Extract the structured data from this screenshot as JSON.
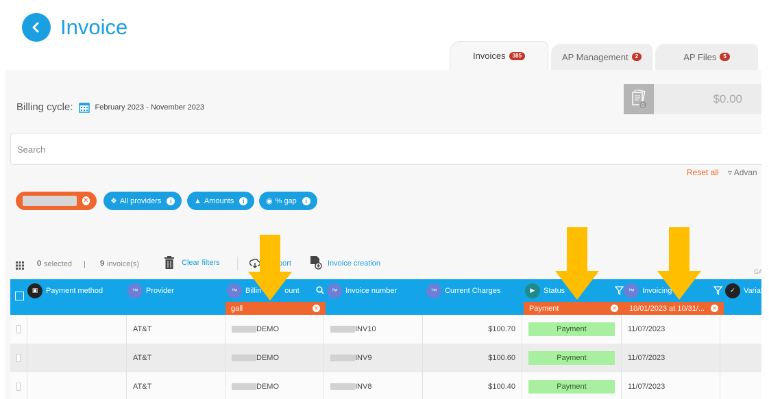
{
  "header": {
    "title": "Invoice"
  },
  "tabs": [
    {
      "label": "Invoices",
      "badge": "385",
      "active": true
    },
    {
      "label": "AP Management",
      "badge": "2",
      "active": false
    },
    {
      "label": "AP Files",
      "badge": "5",
      "active": false
    }
  ],
  "billing": {
    "label": "Billing cycle:",
    "range": "February 2023 - November 2023"
  },
  "amount": {
    "value": "$0.00",
    "icon_badge": "0"
  },
  "search": {
    "placeholder": "Search"
  },
  "filters_bar": {
    "reset": "Reset all",
    "advanced": "Advan"
  },
  "chips": [
    {
      "label": "All providers"
    },
    {
      "label": "Amounts"
    },
    {
      "label": "% gap"
    }
  ],
  "toolbar": {
    "selected_count": "0",
    "selected_label": "selected",
    "divider": "|",
    "invoice_count": "9",
    "invoice_label": "invoice(s)",
    "clear_filters": "Clear filters",
    "export": "port",
    "invoice_creation": "Invoice creation",
    "right_text": "GA"
  },
  "columns": [
    {
      "label": "Payment method"
    },
    {
      "label": "Provider"
    },
    {
      "label": "Billin",
      "label_tail": "ount",
      "filter": "gall"
    },
    {
      "label": "Invoice number"
    },
    {
      "label": "Current Charges"
    },
    {
      "label": "Status",
      "filter": "Payment"
    },
    {
      "label": "Invoicing",
      "filter": "10/01/2023 at 10/31/..."
    },
    {
      "label": "Variatio"
    }
  ],
  "rows": [
    {
      "provider": "AT&T",
      "account": "DEMO",
      "invoice": "INV10",
      "charges": "$100.70",
      "status": "Payment",
      "date": "11/07/2023"
    },
    {
      "provider": "AT&T",
      "account": "DEMO",
      "invoice": "INV9",
      "charges": "$100.60",
      "status": "Payment",
      "date": "11/07/2023"
    },
    {
      "provider": "AT&T",
      "account": "DEMO",
      "invoice": "INV8",
      "charges": "$100.40",
      "status": "Payment",
      "date": "11/07/2023"
    }
  ],
  "colors": {
    "primary": "#1a9fe0",
    "accent": "#f0662f",
    "status_green": "#a8ef9f",
    "arrow": "#ffbf00"
  }
}
